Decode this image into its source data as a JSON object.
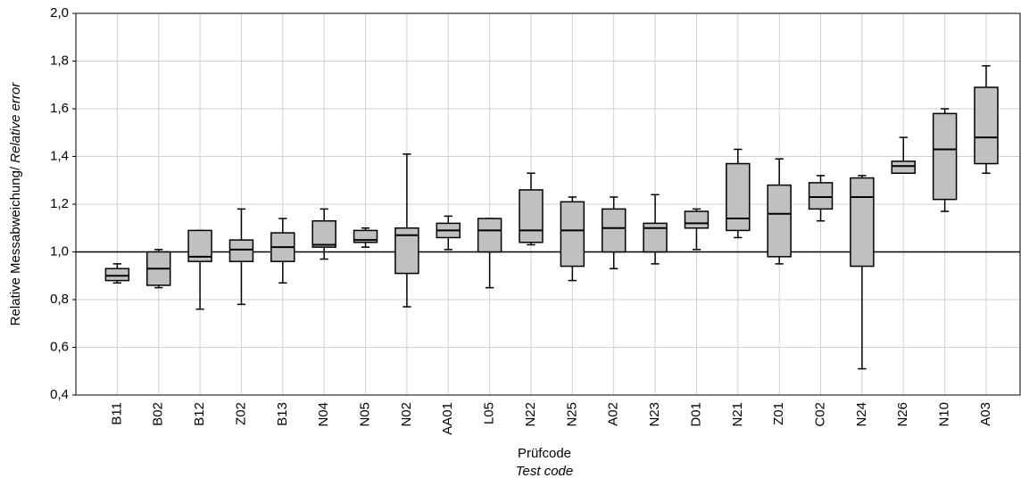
{
  "chart_data": {
    "type": "box",
    "x_label": "Prüfcode",
    "x_label_en": "Test code",
    "y_label": "Relative Messabweichung/ ",
    "y_label_en": "Relative error",
    "categories": [
      "B11",
      "B02",
      "B12",
      "Z02",
      "B13",
      "N04",
      "N05",
      "N02",
      "AA01",
      "L05",
      "N22",
      "N25",
      "A02",
      "N23",
      "D01",
      "N21",
      "Z01",
      "C02",
      "N24",
      "N26",
      "N10",
      "A03"
    ],
    "min": [
      0.87,
      0.85,
      0.76,
      0.78,
      0.87,
      0.97,
      1.02,
      0.77,
      1.01,
      0.85,
      1.03,
      0.88,
      0.93,
      0.95,
      1.01,
      1.06,
      0.95,
      1.13,
      0.51,
      1.33,
      1.17,
      1.33
    ],
    "q1": [
      0.88,
      0.86,
      0.96,
      0.96,
      0.96,
      1.02,
      1.04,
      0.91,
      1.06,
      1.0,
      1.04,
      0.94,
      1.0,
      1.0,
      1.1,
      1.09,
      0.98,
      1.18,
      0.94,
      1.33,
      1.22,
      1.37
    ],
    "median": [
      0.9,
      0.93,
      0.98,
      1.01,
      1.02,
      1.03,
      1.05,
      1.07,
      1.09,
      1.09,
      1.09,
      1.09,
      1.1,
      1.1,
      1.12,
      1.14,
      1.16,
      1.23,
      1.23,
      1.36,
      1.43,
      1.48
    ],
    "q3": [
      0.93,
      1.0,
      1.09,
      1.05,
      1.08,
      1.13,
      1.09,
      1.1,
      1.12,
      1.14,
      1.26,
      1.21,
      1.18,
      1.12,
      1.17,
      1.37,
      1.28,
      1.29,
      1.31,
      1.38,
      1.58,
      1.69
    ],
    "max": [
      0.95,
      1.01,
      1.09,
      1.18,
      1.14,
      1.18,
      1.1,
      1.41,
      1.15,
      1.14,
      1.33,
      1.23,
      1.23,
      1.24,
      1.18,
      1.43,
      1.39,
      1.32,
      1.32,
      1.48,
      1.6,
      1.78
    ],
    "color": "#c0c0c0",
    "reference_line": 1,
    "ylim": [
      0.4,
      2.0
    ],
    "yticks": [
      {
        "value": 0.4,
        "label": "0,4"
      },
      {
        "value": 0.6,
        "label": "0,6"
      },
      {
        "value": 0.8,
        "label": "0,8"
      },
      {
        "value": 1.0,
        "label": "1,0"
      },
      {
        "value": 1.2,
        "label": "1,2"
      },
      {
        "value": 1.4,
        "label": "1,4"
      },
      {
        "value": 1.6,
        "label": "1,6"
      },
      {
        "value": 1.8,
        "label": "1,8"
      },
      {
        "value": 2.0,
        "label": "2,0"
      }
    ],
    "grid": true
  }
}
